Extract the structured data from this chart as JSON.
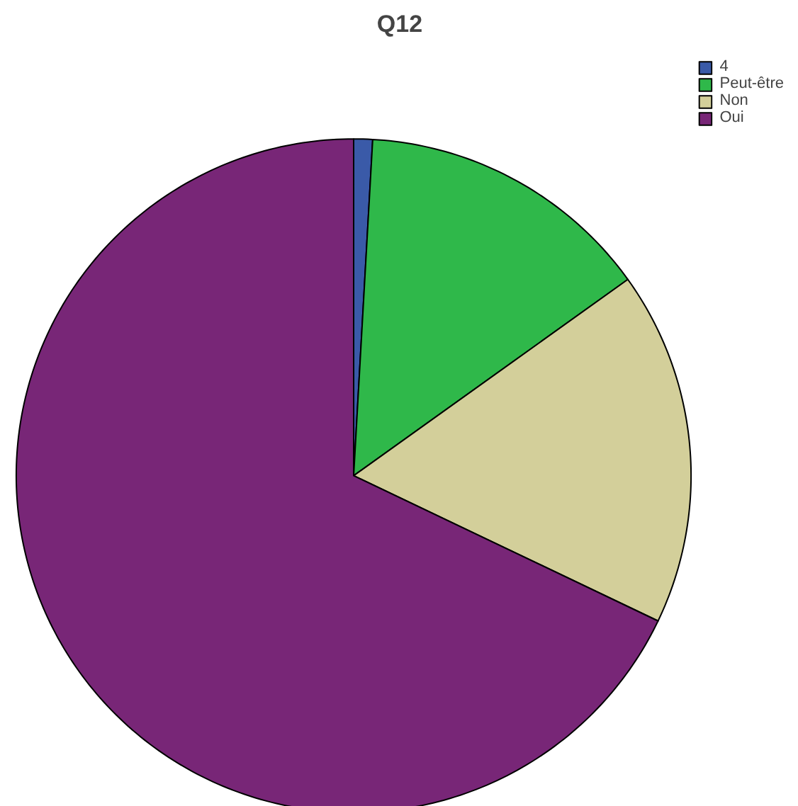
{
  "chart_data": {
    "type": "pie",
    "title": "Q12",
    "categories": [
      "4",
      "Peut-être",
      "Non",
      "Oui"
    ],
    "values": [
      0.9,
      14.2,
      17.0,
      67.9
    ],
    "colors": [
      "#3a5aa8",
      "#2fb84a",
      "#d3cf9a",
      "#782677"
    ],
    "legend": "top right"
  }
}
